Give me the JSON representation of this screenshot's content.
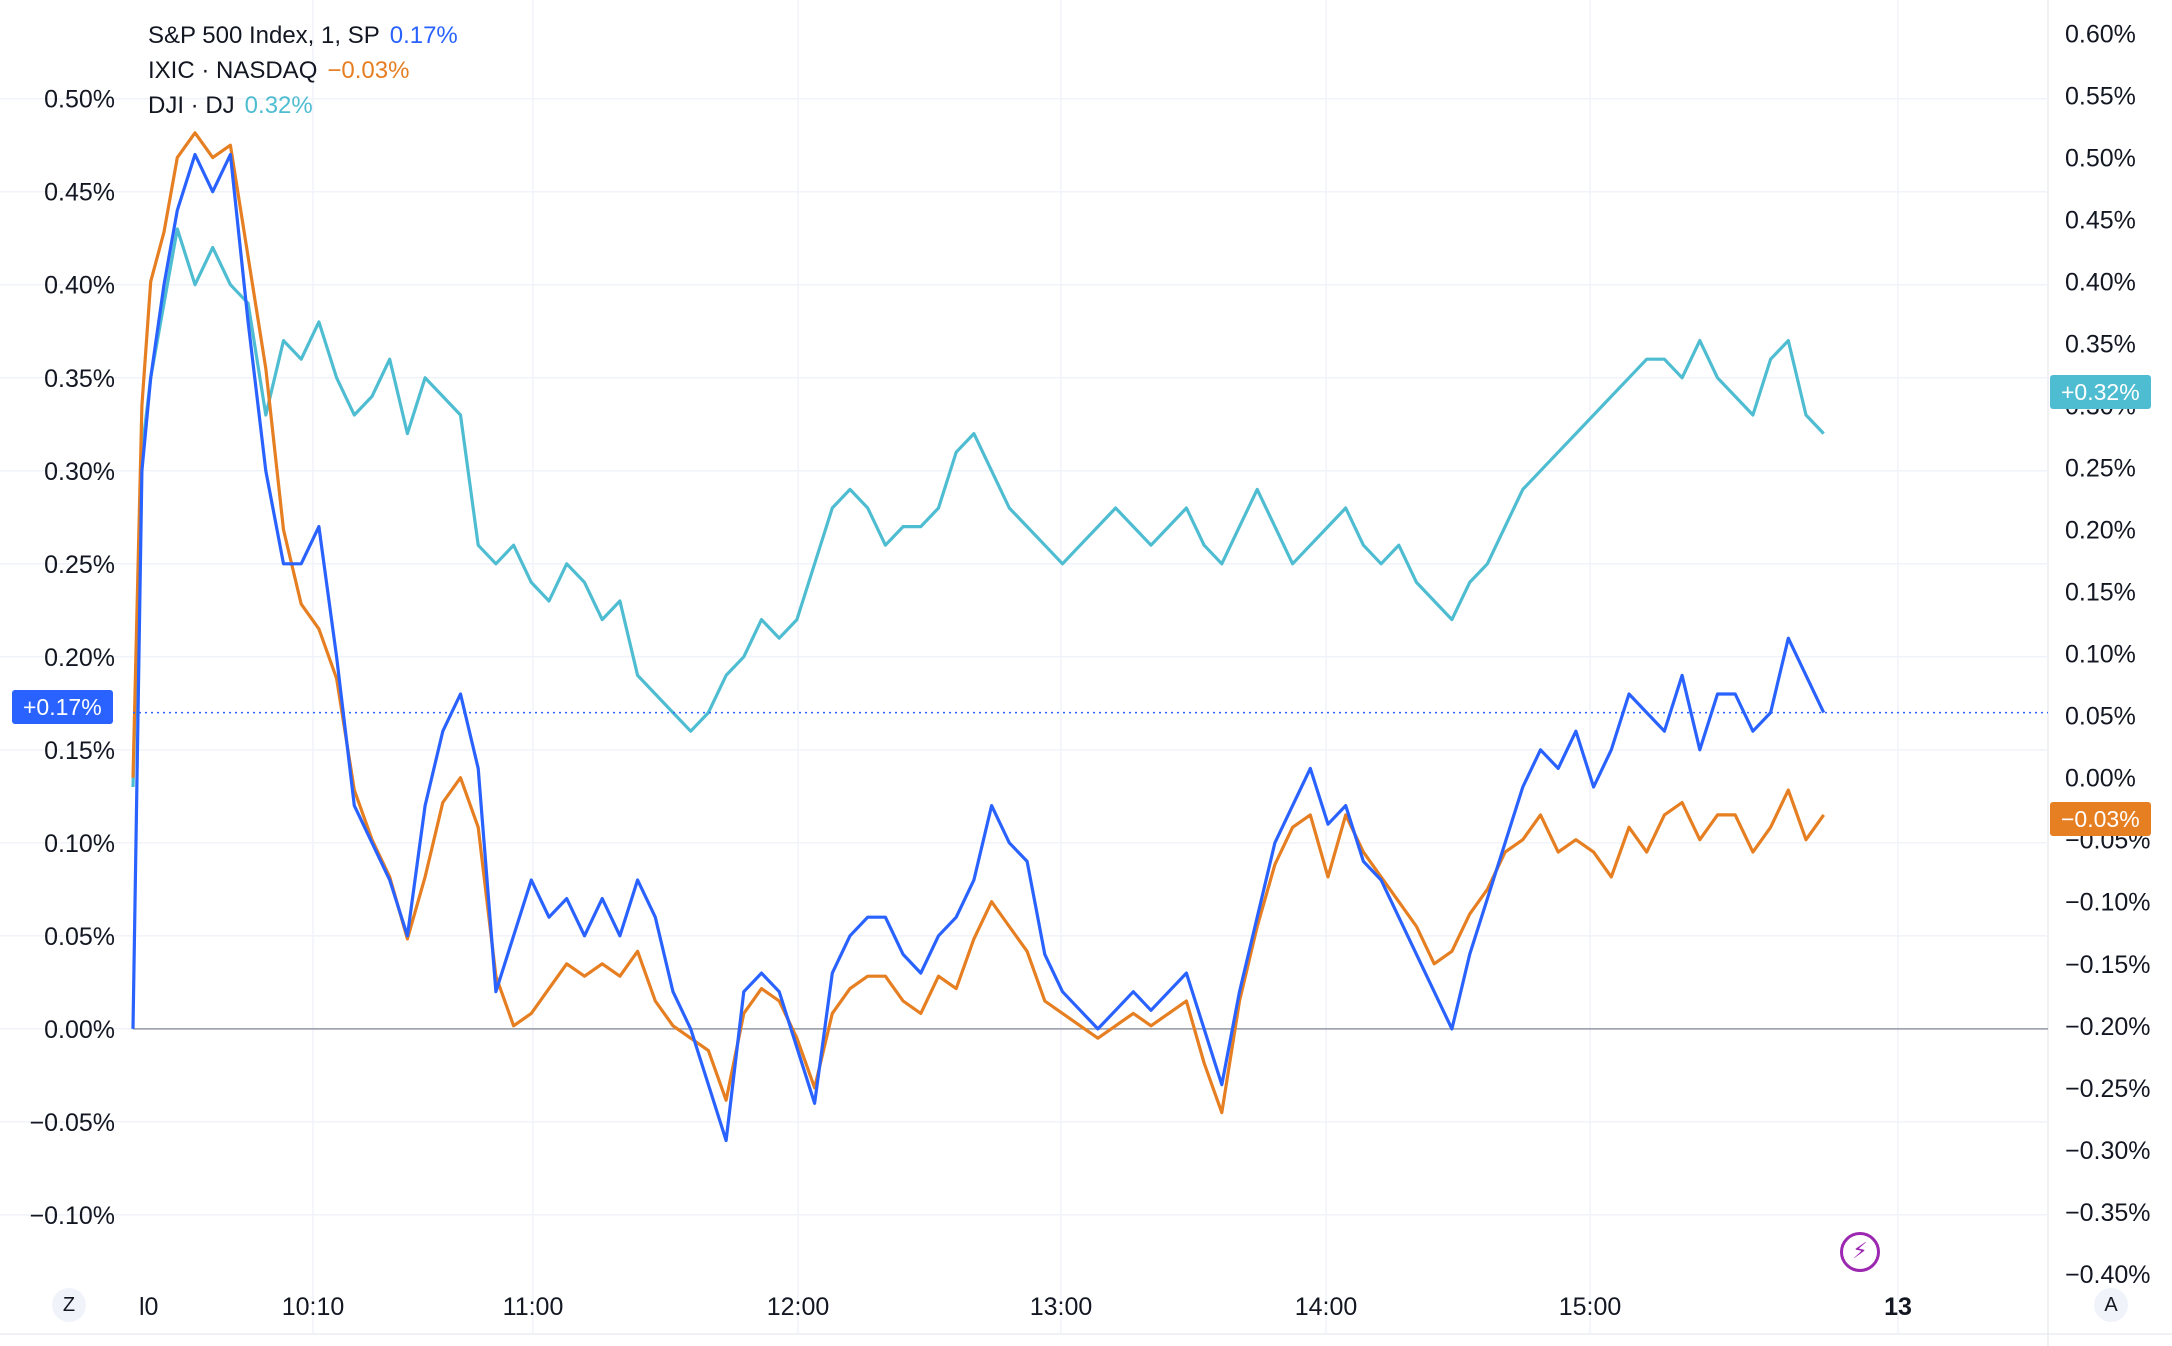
{
  "legend": [
    {
      "name": "S&P 500 Index, 1, SP",
      "value": "0.17%",
      "color": "#2962ff"
    },
    {
      "name": "IXIC · NASDAQ",
      "value": "−0.03%",
      "color": "#e67e22"
    },
    {
      "name": "DJI · DJ",
      "value": "0.32%",
      "color": "#4fbdd1"
    }
  ],
  "tags": {
    "sp": {
      "text": "+0.17%",
      "color": "#2962ff"
    },
    "dji": {
      "text": "+0.32%",
      "color": "#4fbdd1"
    },
    "ixic": {
      "text": "−0.03%",
      "color": "#e67e22"
    }
  },
  "corner": {
    "left": "Z",
    "right": "A"
  },
  "lightning_icon": "lightning-icon",
  "chart_data": {
    "type": "line",
    "x_tick_labels": [
      "l0",
      "10:10",
      "11:00",
      "12:00",
      "13:00",
      "14:00",
      "15:00",
      "13"
    ],
    "left_axis": {
      "ticks": [
        "0.50%",
        "0.45%",
        "0.40%",
        "0.35%",
        "0.30%",
        "0.25%",
        "0.20%",
        "0.15%",
        "0.10%",
        "0.05%",
        "0.00%",
        "−0.05%",
        "−0.10%"
      ],
      "range": [
        -0.135,
        0.545
      ]
    },
    "right_axis": {
      "ticks": [
        "0.60%",
        "0.55%",
        "0.50%",
        "0.45%",
        "0.40%",
        "0.35%",
        "0.30%",
        "0.25%",
        "0.20%",
        "0.15%",
        "0.10%",
        "0.05%",
        "0.00%",
        "−0.05%",
        "−0.10%",
        "−0.15%",
        "−0.20%",
        "−0.25%",
        "−0.30%",
        "−0.35%",
        "−0.40%"
      ],
      "range": [
        -0.405,
        0.615
      ]
    },
    "grid": true,
    "legend_position": "top-left",
    "series": [
      {
        "name": "S&P 500 Index, 1, SP",
        "axis": "left",
        "color": "#2962ff",
        "x": [
          "09:30",
          "09:32",
          "09:34",
          "09:37",
          "09:40",
          "09:44",
          "09:48",
          "09:52",
          "09:56",
          "10:00",
          "10:04",
          "10:08",
          "10:12",
          "10:16",
          "10:20",
          "10:24",
          "10:28",
          "10:32",
          "10:36",
          "10:40",
          "10:44",
          "10:48",
          "10:52",
          "10:56",
          "11:00",
          "11:04",
          "11:08",
          "11:12",
          "11:16",
          "11:20",
          "11:24",
          "11:28",
          "11:32",
          "11:36",
          "11:40",
          "11:44",
          "11:48",
          "11:52",
          "11:56",
          "12:00",
          "12:04",
          "12:08",
          "12:12",
          "12:16",
          "12:20",
          "12:24",
          "12:28",
          "12:32",
          "12:36",
          "12:40",
          "12:44",
          "12:48",
          "12:52",
          "12:56",
          "13:00",
          "13:04",
          "13:08",
          "13:12",
          "13:16",
          "13:20",
          "13:24",
          "13:28",
          "13:32",
          "13:36",
          "13:40",
          "13:44",
          "13:48",
          "13:52",
          "13:56",
          "14:00",
          "14:04",
          "14:08",
          "14:12",
          "14:16",
          "14:20",
          "14:24",
          "14:28",
          "14:32",
          "14:36",
          "14:40",
          "14:44",
          "14:48",
          "14:52",
          "14:56",
          "15:00",
          "15:04",
          "15:08",
          "15:12",
          "15:16",
          "15:20",
          "15:24",
          "15:28",
          "15:32",
          "15:36",
          "15:40",
          "15:44",
          "15:48",
          "15:52"
        ],
        "y": [
          0.0,
          0.3,
          0.35,
          0.4,
          0.44,
          0.47,
          0.45,
          0.47,
          0.38,
          0.3,
          0.25,
          0.25,
          0.27,
          0.2,
          0.12,
          0.1,
          0.08,
          0.05,
          0.12,
          0.16,
          0.18,
          0.14,
          0.02,
          0.05,
          0.08,
          0.06,
          0.07,
          0.05,
          0.07,
          0.05,
          0.08,
          0.06,
          0.02,
          0.0,
          -0.03,
          -0.06,
          0.02,
          0.03,
          0.02,
          -0.01,
          -0.04,
          0.03,
          0.05,
          0.06,
          0.06,
          0.04,
          0.03,
          0.05,
          0.06,
          0.08,
          0.12,
          0.1,
          0.09,
          0.04,
          0.02,
          0.01,
          0.0,
          0.01,
          0.02,
          0.01,
          0.02,
          0.03,
          0.0,
          -0.03,
          0.02,
          0.06,
          0.1,
          0.12,
          0.14,
          0.11,
          0.12,
          0.09,
          0.08,
          0.06,
          0.04,
          0.02,
          0.0,
          0.04,
          0.07,
          0.1,
          0.13,
          0.15,
          0.14,
          0.16,
          0.13,
          0.15,
          0.18,
          0.17,
          0.16,
          0.19,
          0.15,
          0.18,
          0.18,
          0.16,
          0.17,
          0.21,
          0.19,
          0.17
        ]
      },
      {
        "name": "IXIC · NASDAQ",
        "axis": "right",
        "color": "#e67e22",
        "x": [
          "09:30",
          "09:32",
          "09:34",
          "09:37",
          "09:40",
          "09:44",
          "09:48",
          "09:52",
          "09:56",
          "10:00",
          "10:04",
          "10:08",
          "10:12",
          "10:16",
          "10:20",
          "10:24",
          "10:28",
          "10:32",
          "10:36",
          "10:40",
          "10:44",
          "10:48",
          "10:52",
          "10:56",
          "11:00",
          "11:04",
          "11:08",
          "11:12",
          "11:16",
          "11:20",
          "11:24",
          "11:28",
          "11:32",
          "11:36",
          "11:40",
          "11:44",
          "11:48",
          "11:52",
          "11:56",
          "12:00",
          "12:04",
          "12:08",
          "12:12",
          "12:16",
          "12:20",
          "12:24",
          "12:28",
          "12:32",
          "12:36",
          "12:40",
          "12:44",
          "12:48",
          "12:52",
          "12:56",
          "13:00",
          "13:04",
          "13:08",
          "13:12",
          "13:16",
          "13:20",
          "13:24",
          "13:28",
          "13:32",
          "13:36",
          "13:40",
          "13:44",
          "13:48",
          "13:52",
          "13:56",
          "14:00",
          "14:04",
          "14:08",
          "14:12",
          "14:16",
          "14:20",
          "14:24",
          "14:28",
          "14:32",
          "14:36",
          "14:40",
          "14:44",
          "14:48",
          "14:52",
          "14:56",
          "15:00",
          "15:04",
          "15:08",
          "15:12",
          "15:16",
          "15:20",
          "15:24",
          "15:28",
          "15:32",
          "15:36",
          "15:40",
          "15:44",
          "15:48",
          "15:52"
        ],
        "y": [
          0.0,
          0.3,
          0.4,
          0.44,
          0.5,
          0.52,
          0.5,
          0.51,
          0.42,
          0.33,
          0.2,
          0.14,
          0.12,
          0.08,
          -0.01,
          -0.05,
          -0.08,
          -0.13,
          -0.08,
          -0.02,
          0.0,
          -0.04,
          -0.16,
          -0.2,
          -0.19,
          -0.17,
          -0.15,
          -0.16,
          -0.15,
          -0.16,
          -0.14,
          -0.18,
          -0.2,
          -0.21,
          -0.22,
          -0.26,
          -0.19,
          -0.17,
          -0.18,
          -0.21,
          -0.25,
          -0.19,
          -0.17,
          -0.16,
          -0.16,
          -0.18,
          -0.19,
          -0.16,
          -0.17,
          -0.13,
          -0.1,
          -0.12,
          -0.14,
          -0.18,
          -0.19,
          -0.2,
          -0.21,
          -0.2,
          -0.19,
          -0.2,
          -0.19,
          -0.18,
          -0.23,
          -0.27,
          -0.18,
          -0.12,
          -0.07,
          -0.04,
          -0.03,
          -0.08,
          -0.03,
          -0.06,
          -0.08,
          -0.1,
          -0.12,
          -0.15,
          -0.14,
          -0.11,
          -0.09,
          -0.06,
          -0.05,
          -0.03,
          -0.06,
          -0.05,
          -0.06,
          -0.08,
          -0.04,
          -0.06,
          -0.03,
          -0.02,
          -0.05,
          -0.03,
          -0.03,
          -0.06,
          -0.04,
          -0.01,
          -0.05,
          -0.03
        ]
      },
      {
        "name": "DJI · DJ",
        "axis": "left",
        "color": "#4fbdd1",
        "x": [
          "09:30",
          "09:32",
          "09:34",
          "09:37",
          "09:40",
          "09:44",
          "09:48",
          "09:52",
          "09:56",
          "10:00",
          "10:04",
          "10:08",
          "10:12",
          "10:16",
          "10:20",
          "10:24",
          "10:28",
          "10:32",
          "10:36",
          "10:40",
          "10:44",
          "10:48",
          "10:52",
          "10:56",
          "11:00",
          "11:04",
          "11:08",
          "11:12",
          "11:16",
          "11:20",
          "11:24",
          "11:28",
          "11:32",
          "11:36",
          "11:40",
          "11:44",
          "11:48",
          "11:52",
          "11:56",
          "12:00",
          "12:04",
          "12:08",
          "12:12",
          "12:16",
          "12:20",
          "12:24",
          "12:28",
          "12:32",
          "12:36",
          "12:40",
          "12:44",
          "12:48",
          "12:52",
          "12:56",
          "13:00",
          "13:04",
          "13:08",
          "13:12",
          "13:16",
          "13:20",
          "13:24",
          "13:28",
          "13:32",
          "13:36",
          "13:40",
          "13:44",
          "13:48",
          "13:52",
          "13:56",
          "14:00",
          "14:04",
          "14:08",
          "14:12",
          "14:16",
          "14:20",
          "14:24",
          "14:28",
          "14:32",
          "14:36",
          "14:40",
          "14:44",
          "14:48",
          "14:52",
          "14:56",
          "15:00",
          "15:04",
          "15:08",
          "15:12",
          "15:16",
          "15:20",
          "15:24",
          "15:28",
          "15:32",
          "15:36",
          "15:40",
          "15:44",
          "15:48",
          "15:52"
        ],
        "y": [
          0.13,
          0.31,
          0.35,
          0.39,
          0.43,
          0.4,
          0.42,
          0.4,
          0.39,
          0.33,
          0.37,
          0.36,
          0.38,
          0.35,
          0.33,
          0.34,
          0.36,
          0.32,
          0.35,
          0.34,
          0.33,
          0.26,
          0.25,
          0.26,
          0.24,
          0.23,
          0.25,
          0.24,
          0.22,
          0.23,
          0.19,
          0.18,
          0.17,
          0.16,
          0.17,
          0.19,
          0.2,
          0.22,
          0.21,
          0.22,
          0.25,
          0.28,
          0.29,
          0.28,
          0.26,
          0.27,
          0.27,
          0.28,
          0.31,
          0.32,
          0.3,
          0.28,
          0.27,
          0.26,
          0.25,
          0.26,
          0.27,
          0.28,
          0.27,
          0.26,
          0.27,
          0.28,
          0.26,
          0.25,
          0.27,
          0.29,
          0.27,
          0.25,
          0.26,
          0.27,
          0.28,
          0.26,
          0.25,
          0.26,
          0.24,
          0.23,
          0.22,
          0.24,
          0.25,
          0.27,
          0.29,
          0.3,
          0.31,
          0.32,
          0.33,
          0.34,
          0.35,
          0.36,
          0.36,
          0.35,
          0.37,
          0.35,
          0.34,
          0.33,
          0.36,
          0.37,
          0.33,
          0.32
        ]
      }
    ]
  }
}
